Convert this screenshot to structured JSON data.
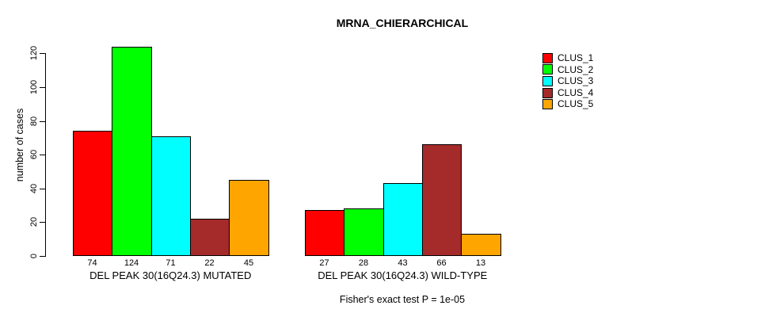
{
  "title": "MRNA_CHIERARCHICAL",
  "y_axis": {
    "label": "number of cases",
    "ticks": [
      0,
      20,
      40,
      60,
      80,
      100,
      120
    ]
  },
  "footer_note": "Fisher's exact test P = 1e-05",
  "legend": {
    "items": [
      {
        "label": "CLUS_1",
        "color": "#FF0000"
      },
      {
        "label": "CLUS_2",
        "color": "#00FF00"
      },
      {
        "label": "CLUS_3",
        "color": "#00FFFF"
      },
      {
        "label": "CLUS_4",
        "color": "#A52A2A"
      },
      {
        "label": "CLUS_5",
        "color": "#FFA500"
      }
    ]
  },
  "chart_data": {
    "type": "bar",
    "title": "MRNA_CHIERARCHICAL",
    "xlabel": "",
    "ylabel": "number of cases",
    "ylim": [
      0,
      128
    ],
    "yticks": [
      0,
      20,
      40,
      60,
      80,
      100,
      120
    ],
    "grid": false,
    "legend_position": "right-inside",
    "bar_value_labels": true,
    "categories": [
      "DEL PEAK 30(16Q24.3) MUTATED",
      "DEL PEAK 30(16Q24.3) WILD-TYPE"
    ],
    "series": [
      {
        "name": "CLUS_1",
        "color": "#FF0000",
        "values": [
          74,
          27
        ]
      },
      {
        "name": "CLUS_2",
        "color": "#00FF00",
        "values": [
          124,
          28
        ]
      },
      {
        "name": "CLUS_3",
        "color": "#00FFFF",
        "values": [
          71,
          43
        ]
      },
      {
        "name": "CLUS_4",
        "color": "#A52A2A",
        "values": [
          22,
          66
        ]
      },
      {
        "name": "CLUS_5",
        "color": "#FFA500",
        "values": [
          45,
          13
        ]
      }
    ],
    "annotation": "Fisher's exact test P = 1e-05"
  }
}
